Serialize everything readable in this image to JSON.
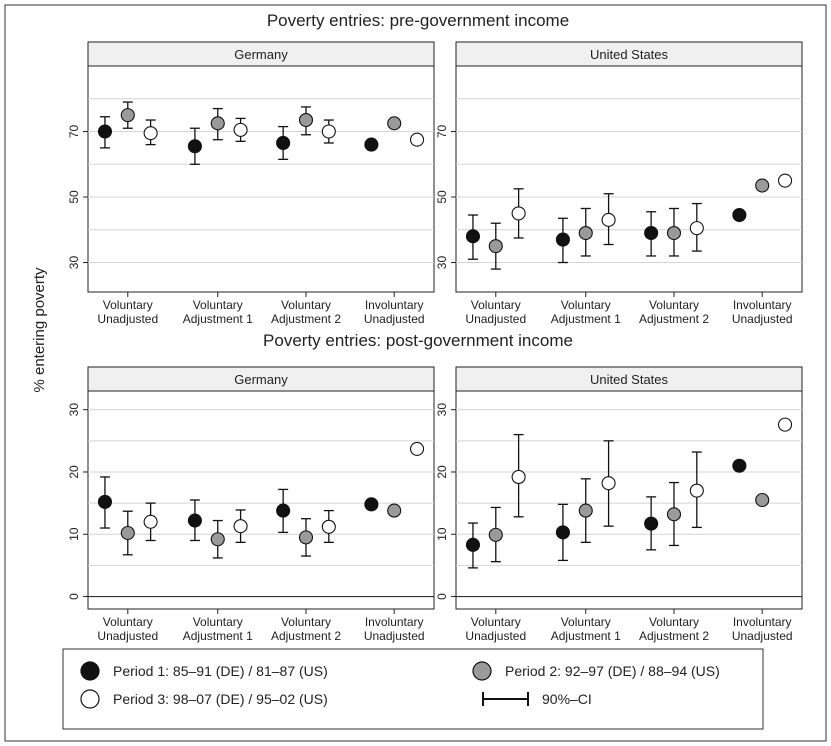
{
  "ylabel": "% entering poverty",
  "categories_line1": [
    "Voluntary",
    "Voluntary",
    "Voluntary",
    "Involuntary"
  ],
  "categories_line2": [
    "Unadjusted",
    "Adjustment 1",
    "Adjustment 2",
    "Unadjusted"
  ],
  "legend": {
    "p1": "Period 1: 85–91 (DE) / 81–87 (US)",
    "p2": "Period 2: 92–97 (DE) / 88–94 (US)",
    "p3": "Period 3: 98–07 (DE) / 95–02 (US)",
    "ci": "90%–CI"
  },
  "colors": {
    "p1": "#111111",
    "p2": "#9a9a9a",
    "p3": "#ffffff",
    "grid": "#d4d4d4",
    "panel_header": "#f0f0f0"
  },
  "chart_data": [
    {
      "type": "scatter",
      "section_title": "Poverty entries: pre-government income",
      "panel_title": "Germany",
      "categories": [
        "Voluntary Unadjusted",
        "Voluntary Adjustment 1",
        "Voluntary Adjustment 2",
        "Involuntary Unadjusted"
      ],
      "yticks": [
        30,
        50,
        70
      ],
      "ylim": [
        21,
        90
      ],
      "series": [
        {
          "name": "Period 1: 85–91 (DE) / 81–87 (US)",
          "values": [
            70,
            65.5,
            66.5,
            66
          ],
          "ci_low": [
            65,
            60,
            61.5,
            null
          ],
          "ci_high": [
            74.5,
            71,
            71.5,
            null
          ]
        },
        {
          "name": "Period 2: 92–97 (DE) / 88–94 (US)",
          "values": [
            75,
            72.5,
            73.5,
            72.5
          ],
          "ci_low": [
            71,
            67.5,
            69,
            null
          ],
          "ci_high": [
            79,
            77,
            77.5,
            null
          ]
        },
        {
          "name": "Period 3: 98–07 (DE) / 95–02 (US)",
          "values": [
            69.5,
            70.5,
            70,
            67.5
          ],
          "ci_low": [
            66,
            67,
            66.5,
            null
          ],
          "ci_high": [
            73.5,
            74,
            73.5,
            null
          ]
        }
      ]
    },
    {
      "type": "scatter",
      "section_title": "Poverty entries: pre-government income",
      "panel_title": "United States",
      "categories": [
        "Voluntary Unadjusted",
        "Voluntary Adjustment 1",
        "Voluntary Adjustment 2",
        "Involuntary Unadjusted"
      ],
      "yticks": [
        30,
        50,
        70
      ],
      "ylim": [
        21,
        90
      ],
      "series": [
        {
          "name": "Period 1: 85–91 (DE) / 81–87 (US)",
          "values": [
            38,
            37,
            39,
            44.5
          ],
          "ci_low": [
            31,
            30,
            32,
            null
          ],
          "ci_high": [
            44.5,
            43.5,
            45.5,
            null
          ]
        },
        {
          "name": "Period 2: 92–97 (DE) / 88–94 (US)",
          "values": [
            35,
            39,
            39,
            53.5
          ],
          "ci_low": [
            28,
            32,
            32,
            null
          ],
          "ci_high": [
            42,
            46.5,
            46.5,
            null
          ]
        },
        {
          "name": "Period 3: 98–07 (DE) / 95–02 (US)",
          "values": [
            45,
            43,
            40.5,
            55
          ],
          "ci_low": [
            37.5,
            35.5,
            33.5,
            null
          ],
          "ci_high": [
            52.5,
            51,
            48,
            null
          ]
        }
      ]
    },
    {
      "type": "scatter",
      "section_title": "Poverty entries: post-government income",
      "panel_title": "Germany",
      "categories": [
        "Voluntary Unadjusted",
        "Voluntary Adjustment 1",
        "Voluntary Adjustment 2",
        "Involuntary Unadjusted"
      ],
      "yticks": [
        0,
        10,
        20,
        30
      ],
      "ylim": [
        -2,
        33
      ],
      "series": [
        {
          "name": "Period 1: 85–91 (DE) / 81–87 (US)",
          "values": [
            15.2,
            12.2,
            13.8,
            14.8
          ],
          "ci_low": [
            11,
            9,
            10.3,
            null
          ],
          "ci_high": [
            19.2,
            15.5,
            17.2,
            null
          ]
        },
        {
          "name": "Period 2: 92–97 (DE) / 88–94 (US)",
          "values": [
            10.2,
            9.2,
            9.5,
            13.8
          ],
          "ci_low": [
            6.7,
            6.2,
            6.5,
            null
          ],
          "ci_high": [
            13.7,
            12.2,
            12.5,
            null
          ]
        },
        {
          "name": "Period 3: 98–07 (DE) / 95–02 (US)",
          "values": [
            12,
            11.3,
            11.2,
            23.7
          ],
          "ci_low": [
            9,
            8.7,
            8.7,
            null
          ],
          "ci_high": [
            15,
            13.9,
            13.8,
            null
          ]
        }
      ]
    },
    {
      "type": "scatter",
      "section_title": "Poverty entries: post-government income",
      "panel_title": "United States",
      "categories": [
        "Voluntary Unadjusted",
        "Voluntary Adjustment 1",
        "Voluntary Adjustment 2",
        "Involuntary Unadjusted"
      ],
      "yticks": [
        0,
        10,
        20,
        30
      ],
      "ylim": [
        -2,
        33
      ],
      "series": [
        {
          "name": "Period 1: 85–91 (DE) / 81–87 (US)",
          "values": [
            8.3,
            10.3,
            11.7,
            21
          ],
          "ci_low": [
            4.6,
            5.8,
            7.5,
            null
          ],
          "ci_high": [
            11.8,
            14.8,
            16,
            null
          ]
        },
        {
          "name": "Period 2: 92–97 (DE) / 88–94 (US)",
          "values": [
            9.9,
            13.8,
            13.2,
            15.5
          ],
          "ci_low": [
            5.6,
            8.7,
            8.2,
            null
          ],
          "ci_high": [
            14.3,
            18.9,
            18.3,
            null
          ]
        },
        {
          "name": "Period 3: 98–07 (DE) / 95–02 (US)",
          "values": [
            19.2,
            18.2,
            17,
            27.6
          ],
          "ci_low": [
            12.8,
            11.3,
            11.1,
            null
          ],
          "ci_high": [
            26,
            25,
            23.2,
            null
          ]
        }
      ]
    }
  ]
}
